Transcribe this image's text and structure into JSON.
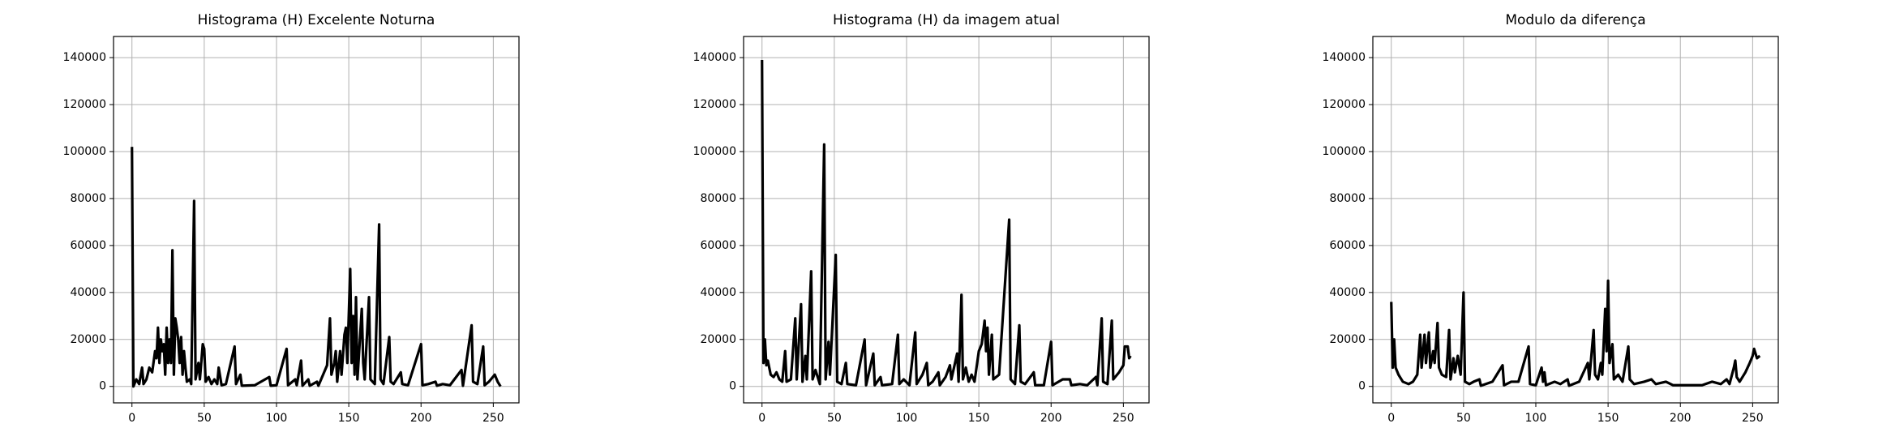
{
  "chart_data": [
    {
      "type": "line",
      "title": "Histograma (H) Excelente Noturna",
      "color": "#000000",
      "grid": true,
      "xlim": [
        -12.75,
        267.75
      ],
      "ylim": [
        -7000,
        149000
      ],
      "xticks": [
        0,
        50,
        100,
        150,
        200,
        250
      ],
      "yticks": [
        0,
        20000,
        40000,
        60000,
        80000,
        100000,
        120000,
        140000
      ],
      "x": [
        0,
        1,
        3,
        5,
        7,
        8,
        10,
        12,
        14,
        16,
        17,
        18,
        19,
        20,
        21,
        22,
        23,
        24,
        25,
        26,
        27,
        28,
        29,
        30,
        31,
        32,
        33,
        34,
        35,
        36,
        37,
        38,
        40,
        41,
        43,
        44,
        46,
        47,
        49,
        50,
        51,
        53,
        55,
        57,
        59,
        60,
        62,
        65,
        71,
        72,
        75,
        76,
        85,
        95,
        96,
        100,
        107,
        108,
        113,
        114,
        117,
        118,
        122,
        123,
        128,
        129,
        135,
        137,
        138,
        140,
        141,
        142,
        144,
        145,
        147,
        148,
        149,
        151,
        152,
        153,
        154,
        155,
        156,
        159,
        160,
        161,
        164,
        165,
        168,
        171,
        172,
        174,
        178,
        179,
        181,
        184,
        186,
        187,
        191,
        200,
        201,
        205,
        210,
        211,
        215,
        220,
        228,
        229,
        235,
        236,
        239,
        243,
        244,
        247,
        251,
        253,
        255
      ],
      "values": [
        102000,
        0,
        3000,
        1000,
        8000,
        1000,
        3000,
        8000,
        6000,
        15000,
        12000,
        25000,
        10000,
        20000,
        15000,
        18000,
        5000,
        25000,
        10000,
        20000,
        10000,
        58000,
        5000,
        29000,
        25000,
        20000,
        10000,
        21000,
        5000,
        15000,
        8000,
        2000,
        3000,
        1000,
        79000,
        3000,
        10000,
        3000,
        18000,
        16000,
        2000,
        4000,
        1000,
        3000,
        1000,
        8000,
        500,
        1000,
        17000,
        1000,
        5000,
        300,
        500,
        4000,
        300,
        500,
        16000,
        500,
        3000,
        500,
        11000,
        300,
        3000,
        300,
        2000,
        300,
        9000,
        29000,
        5000,
        10000,
        15000,
        2000,
        15000,
        5000,
        22000,
        25000,
        10000,
        50000,
        10000,
        30000,
        5000,
        38000,
        3000,
        33000,
        10000,
        3000,
        38000,
        3000,
        1000,
        69000,
        3000,
        1000,
        21000,
        2000,
        1000,
        4000,
        6000,
        1000,
        500,
        18000,
        500,
        1000,
        2000,
        300,
        1000,
        500,
        7000,
        300,
        26000,
        2000,
        1000,
        17000,
        500,
        2000,
        5000,
        2000,
        0
      ]
    },
    {
      "type": "line",
      "title": "Histograma (H) da imagem atual",
      "color": "#000000",
      "grid": true,
      "xlim": [
        -12.75,
        267.75
      ],
      "ylim": [
        -7000,
        149000
      ],
      "xticks": [
        0,
        50,
        100,
        150,
        200,
        250
      ],
      "yticks": [
        0,
        20000,
        40000,
        60000,
        80000,
        100000,
        120000,
        140000
      ],
      "x": [
        0,
        1,
        2,
        3,
        4,
        6,
        8,
        10,
        12,
        14,
        16,
        17,
        20,
        23,
        24,
        27,
        28,
        30,
        31,
        34,
        35,
        37,
        40,
        43,
        44,
        46,
        47,
        51,
        52,
        55,
        58,
        59,
        65,
        71,
        72,
        77,
        78,
        82,
        83,
        90,
        94,
        95,
        98,
        102,
        106,
        107,
        111,
        114,
        115,
        118,
        122,
        123,
        127,
        130,
        131,
        135,
        136,
        138,
        139,
        141,
        143,
        145,
        147,
        150,
        152,
        154,
        155,
        156,
        157,
        159,
        160,
        164,
        171,
        172,
        175,
        178,
        179,
        182,
        188,
        189,
        195,
        200,
        201,
        208,
        213,
        214,
        220,
        225,
        231,
        232,
        235,
        236,
        239,
        242,
        243,
        247,
        250,
        251,
        253,
        254,
        255
      ],
      "values": [
        139000,
        10000,
        20000,
        9000,
        11000,
        5000,
        4000,
        6000,
        3000,
        2000,
        15000,
        2000,
        3000,
        29000,
        3000,
        35000,
        2000,
        13000,
        3000,
        49000,
        3000,
        7000,
        1000,
        103000,
        3000,
        19000,
        5000,
        56000,
        2000,
        1000,
        10000,
        1000,
        500,
        20000,
        500,
        14000,
        500,
        4000,
        500,
        1000,
        22000,
        1000,
        3000,
        500,
        23000,
        1000,
        5000,
        10000,
        500,
        2000,
        6000,
        500,
        4000,
        9000,
        3000,
        14000,
        2000,
        39000,
        3000,
        8000,
        2000,
        5000,
        2000,
        15000,
        18000,
        28000,
        15000,
        25000,
        5000,
        22000,
        3000,
        5000,
        71000,
        3000,
        1000,
        26000,
        2000,
        1000,
        6000,
        500,
        500,
        19000,
        500,
        3000,
        3000,
        500,
        1000,
        500,
        4000,
        500,
        29000,
        2000,
        1000,
        28000,
        3000,
        6000,
        9000,
        17000,
        17000,
        12000,
        13000
      ]
    },
    {
      "type": "line",
      "title": "Modulo da diferença",
      "color": "#000000",
      "grid": true,
      "xlim": [
        -12.75,
        267.75
      ],
      "ylim": [
        -7000,
        149000
      ],
      "xticks": [
        0,
        50,
        100,
        150,
        200,
        250
      ],
      "yticks": [
        0,
        20000,
        40000,
        60000,
        80000,
        100000,
        120000,
        140000
      ],
      "x": [
        0,
        1,
        2,
        3,
        5,
        8,
        12,
        15,
        18,
        20,
        21,
        23,
        24,
        26,
        27,
        29,
        30,
        32,
        33,
        35,
        38,
        40,
        41,
        43,
        44,
        46,
        48,
        50,
        51,
        54,
        57,
        61,
        62,
        70,
        77,
        78,
        83,
        88,
        95,
        96,
        100,
        104,
        105,
        106,
        107,
        113,
        117,
        122,
        123,
        130,
        136,
        137,
        140,
        141,
        143,
        145,
        146,
        148,
        149,
        150,
        151,
        153,
        154,
        157,
        160,
        164,
        165,
        168,
        175,
        180,
        183,
        190,
        195,
        205,
        215,
        222,
        228,
        232,
        234,
        237,
        238,
        239,
        241,
        245,
        248,
        250,
        251,
        253,
        255
      ],
      "values": [
        36000,
        8000,
        20000,
        8000,
        5000,
        2000,
        1000,
        2000,
        5000,
        22000,
        8000,
        22000,
        10000,
        23000,
        8000,
        15000,
        10000,
        27000,
        8000,
        5000,
        4000,
        24000,
        3000,
        12000,
        6000,
        13000,
        5000,
        40000,
        2000,
        1000,
        2000,
        3000,
        300,
        2000,
        9000,
        500,
        2000,
        2000,
        17000,
        1000,
        500,
        8000,
        2000,
        6000,
        500,
        2000,
        1000,
        3000,
        300,
        2000,
        10000,
        3000,
        24000,
        5000,
        3000,
        10000,
        5000,
        33000,
        15000,
        45000,
        10000,
        18000,
        3000,
        5000,
        2000,
        17000,
        3000,
        1000,
        2000,
        3000,
        1000,
        2000,
        500,
        500,
        500,
        2000,
        1000,
        3000,
        1000,
        8000,
        11000,
        4000,
        2000,
        6000,
        10000,
        13000,
        16000,
        12000,
        13000
      ]
    }
  ]
}
